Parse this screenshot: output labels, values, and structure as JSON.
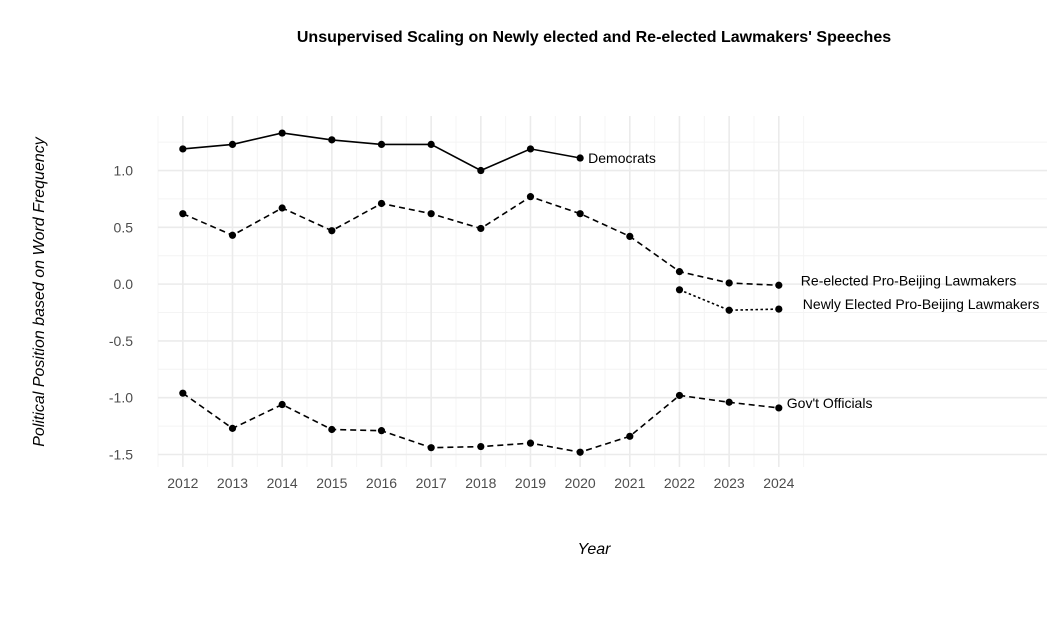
{
  "chart_data": {
    "type": "line",
    "title": "Unsupervised Scaling on Newly elected and Re-elected Lawmakers' Speeches",
    "xlabel": "Year",
    "ylabel": "Political Position based on Word Frequency",
    "x_ticks": [
      2012,
      2013,
      2014,
      2015,
      2016,
      2017,
      2018,
      2019,
      2020,
      2021,
      2022,
      2023,
      2024
    ],
    "y_ticks": [
      1.0,
      0.5,
      0.0,
      -0.5,
      -1.0,
      -1.5
    ],
    "y_tick_labels": [
      "1.0",
      "0.5",
      "0.0",
      "-0.5",
      "-1.0",
      "-1.5"
    ],
    "xlim": [
      2011.5,
      2029.4
    ],
    "ylim": [
      -1.61,
      1.48
    ],
    "grid": true,
    "legend": "none (direct labels)",
    "series": [
      {
        "name": "Democrats",
        "line_style": "solid",
        "x": [
          2012,
          2013,
          2014,
          2015,
          2016,
          2017,
          2018,
          2019,
          2020
        ],
        "values": [
          1.19,
          1.23,
          1.33,
          1.27,
          1.23,
          1.23,
          1.0,
          1.19,
          1.11
        ]
      },
      {
        "name": "Re-elected Pro-Beijing Lawmakers",
        "line_style": "dashed",
        "x": [
          2012,
          2013,
          2014,
          2015,
          2016,
          2017,
          2018,
          2019,
          2020,
          2021,
          2022,
          2023,
          2024
        ],
        "values": [
          0.62,
          0.43,
          0.67,
          0.47,
          0.71,
          0.62,
          0.49,
          0.77,
          0.62,
          0.42,
          0.11,
          0.01,
          -0.01
        ]
      },
      {
        "name": "Newly Elected Pro-Beijing Lawmakers",
        "line_style": "dotted",
        "x": [
          2022,
          2023,
          2024
        ],
        "values": [
          -0.05,
          -0.23,
          -0.22
        ]
      },
      {
        "name": "Gov't Officials",
        "line_style": "dashed",
        "x": [
          2012,
          2013,
          2014,
          2015,
          2016,
          2017,
          2018,
          2019,
          2020,
          2021,
          2022,
          2023,
          2024
        ],
        "values": [
          -0.96,
          -1.27,
          -1.06,
          -1.28,
          -1.29,
          -1.44,
          -1.43,
          -1.4,
          -1.48,
          -1.34,
          -0.98,
          -1.04,
          -1.09
        ]
      }
    ],
    "colors": {
      "line": "#000000",
      "grid_major": "#ebebeb",
      "grid_minor": "#f4f4f4",
      "tick_text": "#4d4d4d"
    }
  }
}
